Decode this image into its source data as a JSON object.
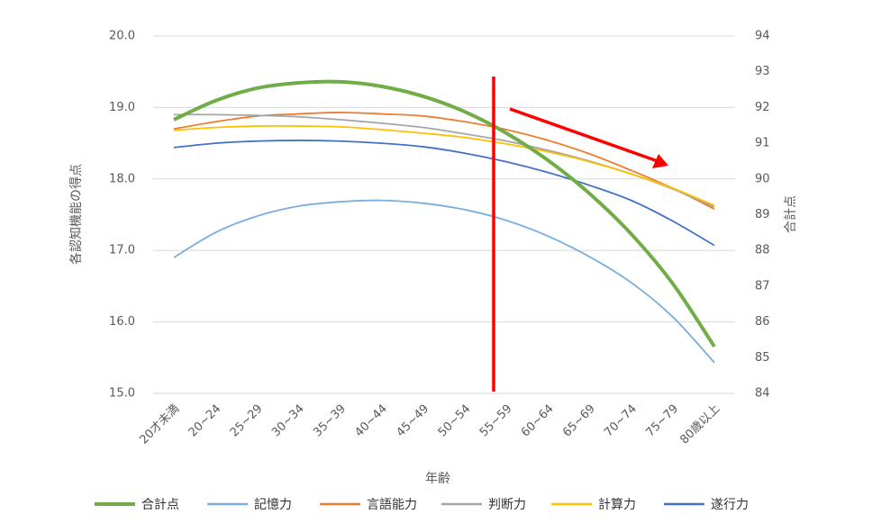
{
  "chart_data": {
    "type": "line",
    "categories": [
      "20才未満",
      "20~24",
      "25~29",
      "30~34",
      "35~39",
      "40~44",
      "45~49",
      "50~54",
      "55~59",
      "60~64",
      "65~69",
      "70~74",
      "75~79",
      "80歳以上"
    ],
    "x_label": "年齢",
    "y_label": "各認知機能の得点",
    "y2_label": "合計点",
    "ylim": [
      15,
      20
    ],
    "yticks": [
      {
        "value": 15,
        "label": "15.0"
      },
      {
        "value": 16,
        "label": "16.0"
      },
      {
        "value": 17,
        "label": "17.0"
      },
      {
        "value": 18,
        "label": "18.0"
      },
      {
        "value": 19,
        "label": "19.0"
      },
      {
        "value": 20,
        "label": "20.0"
      }
    ],
    "y2lim": [
      84,
      94
    ],
    "y2ticks": [
      84,
      85,
      86,
      87,
      88,
      89,
      90,
      91,
      92,
      93,
      94
    ],
    "grid": true,
    "legend": "bottom",
    "series": [
      {
        "name": "合計点",
        "color": "#70ad47",
        "axis": "y2",
        "values": [
          91.66,
          92.19,
          92.54,
          92.69,
          92.72,
          92.59,
          92.31,
          91.88,
          91.28,
          90.52,
          89.59,
          88.46,
          87.07,
          85.31
        ]
      },
      {
        "name": "記憶力",
        "color": "#7aaedc",
        "values": [
          16.9,
          17.25,
          17.48,
          17.62,
          17.68,
          17.7,
          17.66,
          17.57,
          17.42,
          17.2,
          16.91,
          16.55,
          16.07,
          15.43
        ]
      },
      {
        "name": "言語能力",
        "color": "#ed7d31",
        "values": [
          18.7,
          18.8,
          18.88,
          18.91,
          18.93,
          18.91,
          18.88,
          18.8,
          18.69,
          18.54,
          18.35,
          18.12,
          17.87,
          17.58
        ]
      },
      {
        "name": "判断力",
        "color": "#a5a5a5",
        "values": [
          18.9,
          18.9,
          18.89,
          18.87,
          18.83,
          18.78,
          18.72,
          18.63,
          18.53,
          18.4,
          18.25,
          18.07,
          17.86,
          17.61
        ]
      },
      {
        "name": "計算力",
        "color": "#ffc000",
        "values": [
          18.68,
          18.72,
          18.74,
          18.74,
          18.73,
          18.69,
          18.64,
          18.58,
          18.49,
          18.38,
          18.24,
          18.07,
          17.87,
          17.63
        ]
      },
      {
        "name": "遂行力",
        "color": "#4472c4",
        "values": [
          18.44,
          18.5,
          18.53,
          18.54,
          18.53,
          18.5,
          18.45,
          18.36,
          18.24,
          18.09,
          17.91,
          17.7,
          17.41,
          17.07
        ]
      }
    ]
  }
}
